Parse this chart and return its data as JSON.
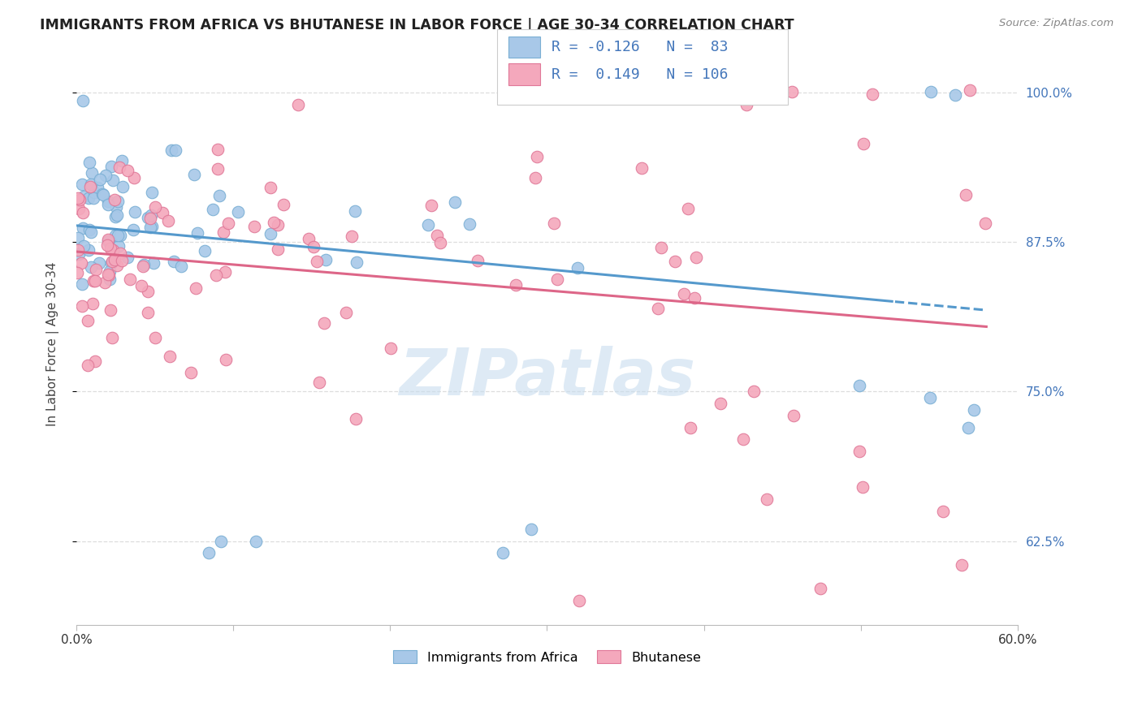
{
  "title": "IMMIGRANTS FROM AFRICA VS BHUTANESE IN LABOR FORCE | AGE 30-34 CORRELATION CHART",
  "source": "Source: ZipAtlas.com",
  "ylabel": "In Labor Force | Age 30-34",
  "xlim": [
    0.0,
    0.6
  ],
  "ylim": [
    0.555,
    1.025
  ],
  "xticks": [
    0.0,
    0.1,
    0.2,
    0.3,
    0.4,
    0.5,
    0.6
  ],
  "xticklabels": [
    "0.0%",
    "",
    "",
    "",
    "",
    "",
    "60.0%"
  ],
  "yticks": [
    0.625,
    0.75,
    0.875,
    1.0
  ],
  "yticklabels_right": [
    "62.5%",
    "75.0%",
    "87.5%",
    "100.0%"
  ],
  "legend_r_blue": "-0.126",
  "legend_n_blue": "83",
  "legend_r_pink": "0.149",
  "legend_n_pink": "106",
  "blue_fill": "#A8C8E8",
  "blue_edge": "#7AAFD4",
  "pink_fill": "#F4A8BC",
  "pink_edge": "#E07898",
  "trend_blue": "#5599CC",
  "trend_pink": "#DD6688",
  "grid_color": "#DDDDDD",
  "text_color": "#4477BB",
  "watermark_color": "#C8DDEF",
  "seed": 123
}
